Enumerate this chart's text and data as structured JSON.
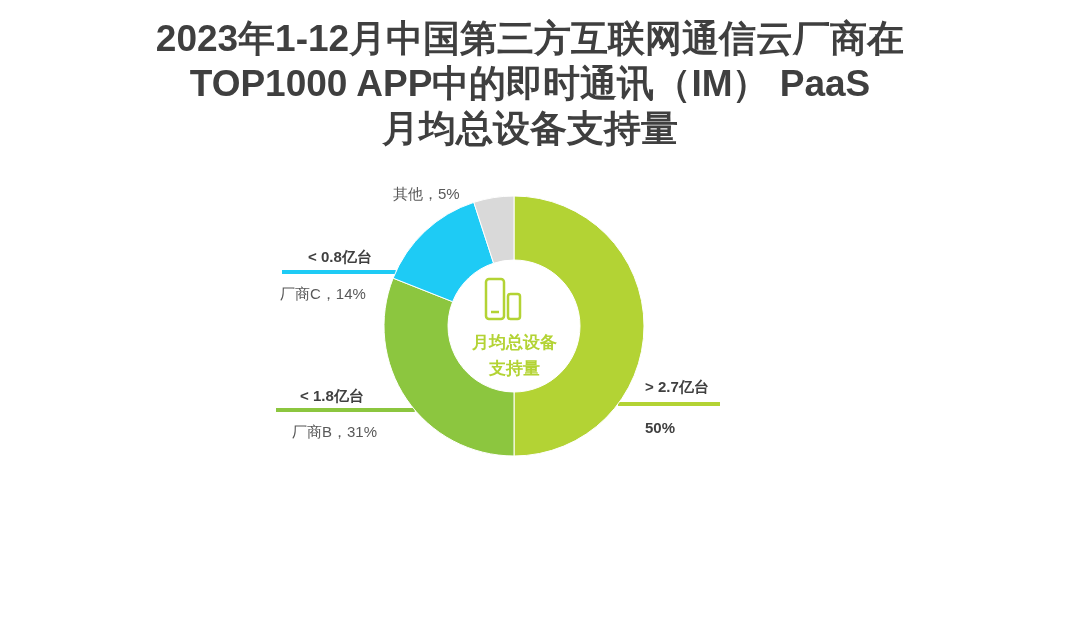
{
  "chart_data": {
    "type": "donut",
    "title": "2023年1-12月中国第三方互联网通信云厂商在\nTOP1000 APP中的即时通讯（IM） PaaS\n月均总设备支持量",
    "categories": [
      null,
      "厂商B",
      "厂商C",
      "其他"
    ],
    "values": [
      50,
      31,
      14,
      5
    ],
    "colors": [
      "#b3d334",
      "#8cc63f",
      "#1ecbf5",
      "#d9d9d9"
    ],
    "value_labels": [
      "50%",
      "，31%",
      "，14%",
      "，5%"
    ],
    "annotations": [
      "> 2.7亿台",
      "< 1.8亿台",
      "< 0.8亿台",
      "月均总设备",
      "支持量"
    ]
  }
}
